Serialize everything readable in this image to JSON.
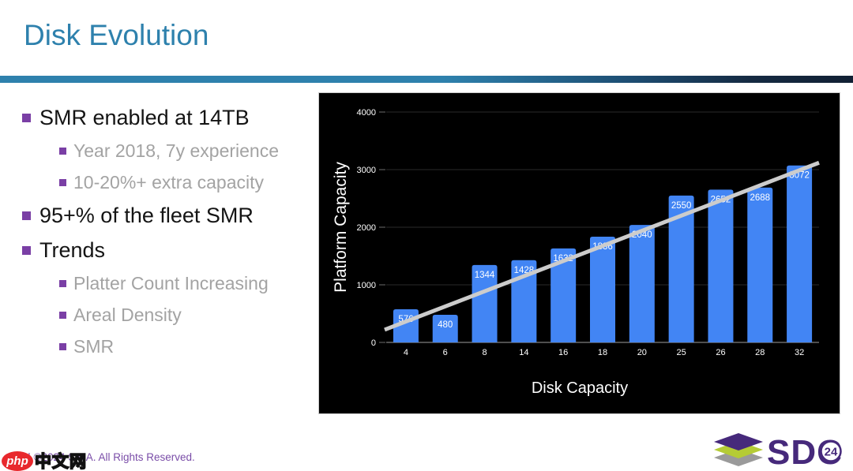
{
  "slide": {
    "title": "Disk Evolution",
    "bullets": [
      {
        "level": 1,
        "text": "SMR enabled at 14TB"
      },
      {
        "level": 2,
        "text": "Year 2018, 7y experience"
      },
      {
        "level": 2,
        "text": "10-20%+ extra capacity"
      },
      {
        "level": 1,
        "text": "95+% of the fleet SMR"
      },
      {
        "level": 1,
        "text": "Trends"
      },
      {
        "level": 2,
        "text": "Platter Count Increasing"
      },
      {
        "level": 2,
        "text": "Areal Density"
      },
      {
        "level": 2,
        "text": "SMR"
      }
    ],
    "colors": {
      "title_blue": "#2e81ad",
      "bullet_purple": "#7a3fa5",
      "level1_text": "#141414",
      "level2_text": "#a3a3a3"
    }
  },
  "chart_data": {
    "type": "bar",
    "title": "",
    "categories": [
      "4",
      "6",
      "8",
      "14",
      "16",
      "18",
      "20",
      "25",
      "26",
      "28",
      "32"
    ],
    "values": [
      576,
      480,
      1344,
      1428,
      1632,
      1836,
      2040,
      2550,
      2652,
      2688,
      3072
    ],
    "xlabel": "Disk Capacity",
    "ylabel": "Platform Capacity",
    "yticks": [
      0,
      1000,
      2000,
      3000,
      4000
    ],
    "ylim": [
      0,
      4000
    ],
    "grid": true,
    "legend": "none",
    "trendline": {
      "start_value": 220,
      "end_value": 3120
    },
    "colors": {
      "background": "#000000",
      "bar": "#4285f4",
      "bar_label": "#ffffff",
      "axis_text": "#ffffff",
      "gridline": "#2a2a2a",
      "axis_line": "#9e9e9e",
      "trend_line": "#cccccc"
    }
  },
  "footer": {
    "copyright": "3 | ©2024 SNIA. All Rights Reserved.",
    "watermark": {
      "badge": "php",
      "text": "中文网"
    },
    "logo": {
      "text": "SDC",
      "badge": "24",
      "colors": {
        "purple": "#46297b",
        "green": "#b5cc35",
        "gray": "#9a9a9a"
      }
    }
  }
}
